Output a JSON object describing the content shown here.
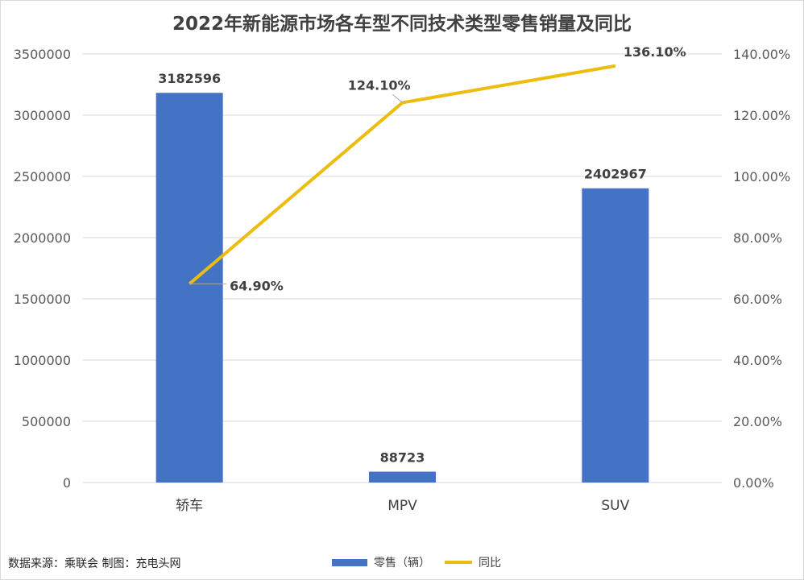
{
  "chart_data": {
    "type": "bar",
    "title": "2022年新能源市场各车型不同技术类型零售销量及同比",
    "categories": [
      "轿车",
      "MPV",
      "SUV"
    ],
    "series": [
      {
        "name": "零售（辆）",
        "type": "bar",
        "axis": "left",
        "values": [
          3182596,
          88723,
          2402967
        ],
        "labels": [
          "3182596",
          "88723",
          "2402967"
        ],
        "color": "#4472c4"
      },
      {
        "name": "同比",
        "type": "line",
        "axis": "right",
        "values": [
          64.9,
          124.1,
          136.1
        ],
        "labels": [
          "64.90%",
          "124.10%",
          "136.10%"
        ],
        "color": "#ecbc0e"
      }
    ],
    "y_left": {
      "min": 0,
      "max": 3500000,
      "ticks": [
        "0",
        "500000",
        "1000000",
        "1500000",
        "2000000",
        "2500000",
        "3000000",
        "3500000"
      ]
    },
    "y_right": {
      "min": 0,
      "max": 140,
      "ticks": [
        "0.00%",
        "20.00%",
        "40.00%",
        "60.00%",
        "80.00%",
        "100.00%",
        "120.00%",
        "140.00%"
      ]
    },
    "grid": true,
    "legend_position": "bottom"
  },
  "footer": {
    "source": "数据来源：乘联会 制图：充电头网"
  }
}
